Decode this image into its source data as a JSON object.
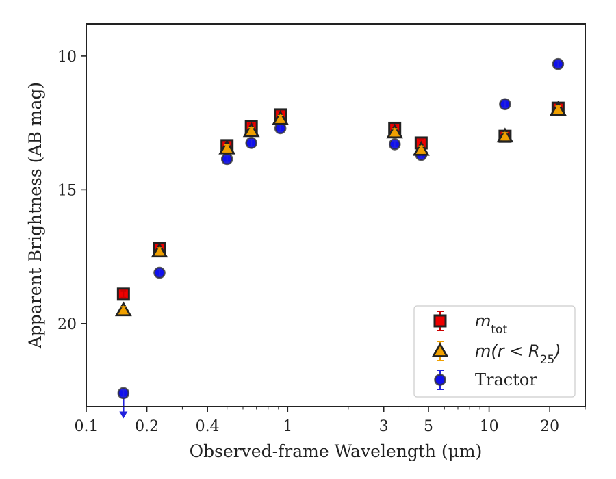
{
  "chart_data": {
    "type": "scatter",
    "xlabel": "Observed-frame Wavelength (μm)",
    "ylabel": "Apparent Brightness (AB mag)",
    "xscale": "log",
    "xlim": [
      0.1,
      30
    ],
    "ylim": [
      23.1,
      8.8
    ],
    "y_inverted": true,
    "x_ticks": [
      0.1,
      0.2,
      0.4,
      1,
      3,
      5,
      10,
      20
    ],
    "x_tick_labels": [
      "0.1",
      "0.2",
      "0.4",
      "1",
      "3",
      "5",
      "10",
      "20"
    ],
    "y_ticks": [
      10,
      15,
      20
    ],
    "y_tick_labels": [
      "10",
      "15",
      "20"
    ],
    "legend_position": "lower-right",
    "series": [
      {
        "key": "mtot",
        "legend_main": "m",
        "legend_sub": "tot",
        "marker": "square",
        "color": "#ee0000",
        "edge_color": "#222222",
        "error_color": "#cc0000",
        "points": [
          {
            "x": 0.153,
            "y": 18.9
          },
          {
            "x": 0.231,
            "y": 17.2
          },
          {
            "x": 0.5,
            "y": 13.35
          },
          {
            "x": 0.66,
            "y": 12.65
          },
          {
            "x": 0.92,
            "y": 12.2
          },
          {
            "x": 3.4,
            "y": 12.7
          },
          {
            "x": 4.6,
            "y": 13.25
          },
          {
            "x": 12.0,
            "y": 13.0
          },
          {
            "x": 22.0,
            "y": 11.95
          }
        ]
      },
      {
        "key": "mr25",
        "legend_main": "m(r < R",
        "legend_sub": "25",
        "legend_tail": ")",
        "marker": "triangle",
        "color": "#f0a000",
        "edge_color": "#222222",
        "error_color": "#f0a000",
        "points": [
          {
            "x": 0.153,
            "y": 19.5
          },
          {
            "x": 0.231,
            "y": 17.3
          },
          {
            "x": 0.5,
            "y": 13.45
          },
          {
            "x": 0.66,
            "y": 12.8
          },
          {
            "x": 0.92,
            "y": 12.35
          },
          {
            "x": 3.4,
            "y": 12.85
          },
          {
            "x": 4.6,
            "y": 13.5
          },
          {
            "x": 12.0,
            "y": 13.0
          },
          {
            "x": 22.0,
            "y": 12.0
          }
        ]
      },
      {
        "key": "tractor",
        "legend_main": "Tractor",
        "marker": "circle",
        "color": "#1010ee",
        "edge_color": "#333333",
        "error_color": "#2222dd",
        "points": [
          {
            "x": 0.153,
            "y": 22.6,
            "upper_limit": true
          },
          {
            "x": 0.231,
            "y": 18.1
          },
          {
            "x": 0.5,
            "y": 13.85
          },
          {
            "x": 0.66,
            "y": 13.25
          },
          {
            "x": 0.92,
            "y": 12.7
          },
          {
            "x": 3.4,
            "y": 13.3
          },
          {
            "x": 4.6,
            "y": 13.7
          },
          {
            "x": 12.0,
            "y": 11.8
          },
          {
            "x": 22.0,
            "y": 10.3
          }
        ]
      }
    ]
  }
}
